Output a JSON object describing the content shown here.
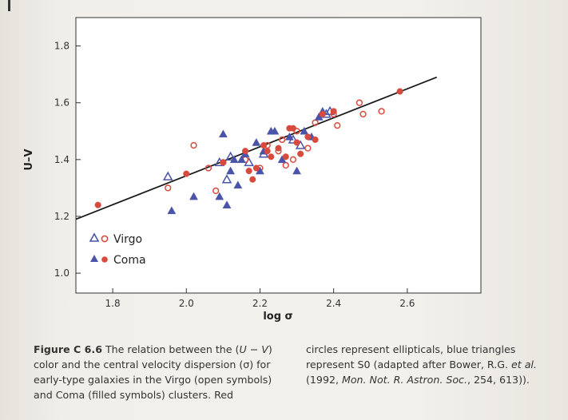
{
  "chart_data": {
    "type": "scatter",
    "xlabel": "log σ",
    "ylabel": "U–V",
    "xlim": [
      1.7,
      2.8
    ],
    "ylim": [
      0.93,
      1.9
    ],
    "x_ticks": [
      "1.8",
      "2.0",
      "2.2",
      "2.4",
      "2.6"
    ],
    "y_ticks": [
      "1.0",
      "1.2",
      "1.4",
      "1.6",
      "1.8"
    ],
    "grid": false,
    "legend": {
      "placement": "bottom-left"
    },
    "fit_line": {
      "x": [
        1.7,
        2.68
      ],
      "y": [
        1.19,
        1.69
      ]
    },
    "series": [
      {
        "name": "Virgo",
        "group": "Virgo",
        "marker": "triangle-open",
        "color": "#4a54a8",
        "points": [
          [
            1.95,
            1.34
          ],
          [
            2.09,
            1.39
          ],
          [
            2.11,
            1.33
          ],
          [
            2.12,
            1.41
          ],
          [
            2.21,
            1.42
          ],
          [
            2.29,
            1.47
          ],
          [
            2.31,
            1.45
          ],
          [
            2.38,
            1.56
          ],
          [
            2.39,
            1.57
          ],
          [
            2.17,
            1.39
          ]
        ]
      },
      {
        "name": "Virgo",
        "group": "Virgo",
        "marker": "circle-open",
        "color": "#d94a3e",
        "points": [
          [
            1.95,
            1.3
          ],
          [
            2.02,
            1.45
          ],
          [
            2.06,
            1.37
          ],
          [
            2.08,
            1.29
          ],
          [
            2.1,
            1.39
          ],
          [
            2.16,
            1.4
          ],
          [
            2.22,
            1.45
          ],
          [
            2.26,
            1.47
          ],
          [
            2.27,
            1.38
          ],
          [
            2.29,
            1.4
          ],
          [
            2.3,
            1.5
          ],
          [
            2.33,
            1.44
          ],
          [
            2.35,
            1.53
          ],
          [
            2.4,
            1.56
          ],
          [
            2.41,
            1.52
          ],
          [
            2.47,
            1.6
          ],
          [
            2.48,
            1.56
          ],
          [
            2.53,
            1.57
          ],
          [
            2.2,
            1.37
          ],
          [
            2.25,
            1.43
          ]
        ]
      },
      {
        "name": "Coma",
        "group": "Coma",
        "marker": "triangle-filled",
        "color": "#4a54a8",
        "points": [
          [
            1.96,
            1.22
          ],
          [
            2.02,
            1.27
          ],
          [
            2.09,
            1.27
          ],
          [
            2.1,
            1.49
          ],
          [
            2.11,
            1.24
          ],
          [
            2.12,
            1.36
          ],
          [
            2.13,
            1.4
          ],
          [
            2.14,
            1.31
          ],
          [
            2.15,
            1.4
          ],
          [
            2.19,
            1.46
          ],
          [
            2.21,
            1.43
          ],
          [
            2.23,
            1.5
          ],
          [
            2.24,
            1.5
          ],
          [
            2.26,
            1.4
          ],
          [
            2.3,
            1.36
          ],
          [
            2.32,
            1.5
          ],
          [
            2.34,
            1.48
          ],
          [
            2.36,
            1.55
          ],
          [
            2.37,
            1.57
          ],
          [
            2.16,
            1.42
          ],
          [
            2.2,
            1.36
          ],
          [
            2.28,
            1.48
          ]
        ]
      },
      {
        "name": "Coma",
        "group": "Coma",
        "marker": "circle-filled",
        "color": "#d94a3e",
        "points": [
          [
            1.76,
            1.24
          ],
          [
            2.0,
            1.35
          ],
          [
            2.1,
            1.39
          ],
          [
            2.16,
            1.43
          ],
          [
            2.18,
            1.33
          ],
          [
            2.19,
            1.37
          ],
          [
            2.21,
            1.45
          ],
          [
            2.23,
            1.41
          ],
          [
            2.25,
            1.44
          ],
          [
            2.27,
            1.41
          ],
          [
            2.28,
            1.51
          ],
          [
            2.29,
            1.51
          ],
          [
            2.31,
            1.42
          ],
          [
            2.33,
            1.48
          ],
          [
            2.35,
            1.47
          ],
          [
            2.37,
            1.56
          ],
          [
            2.4,
            1.57
          ],
          [
            2.58,
            1.64
          ],
          [
            2.17,
            1.36
          ],
          [
            2.22,
            1.43
          ],
          [
            2.3,
            1.46
          ]
        ]
      }
    ]
  },
  "legend": {
    "virgo_label": "Virgo",
    "coma_label": "Coma"
  },
  "caption": {
    "figure_label": "Figure C 6.6",
    "left_text_1": " The relation between the (",
    "left_italic_uv": "U",
    "left_text_2": " − ",
    "left_italic_v": "V",
    "left_text_3": ") color and the central velocity dispersion (σ) for early-type galaxies in the Virgo (open symbols) and Coma (filled symbols) clusters. Red",
    "right_text_1": "circles represent ellipticals, blue triangles represent S0 (adapted after Bower, R.G. ",
    "right_italic_etal": "et al.",
    "right_text_2": " (1992, ",
    "right_italic_journal": "Mon. Not. R. Astron. Soc.",
    "right_text_3": ", 254, 613))."
  },
  "colors": {
    "circle_red": "#d94a3e",
    "triangle_blue": "#4a54a8",
    "fit_line": "#1a1a1a",
    "plot_background": "#ffffff"
  }
}
